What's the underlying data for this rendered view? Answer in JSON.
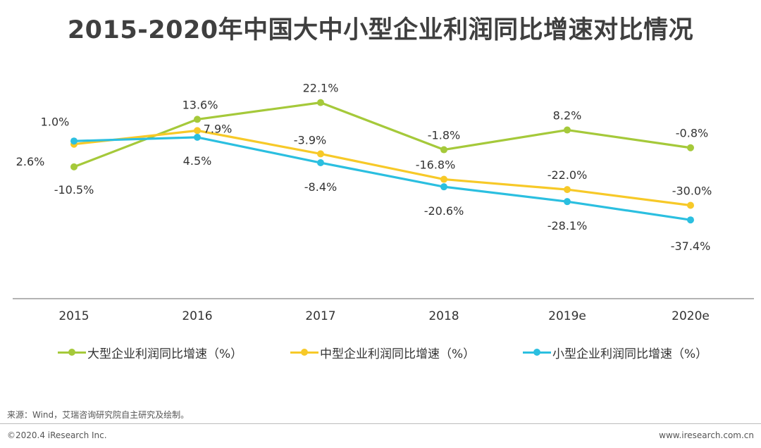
{
  "page": {
    "title": "2015-2020年中国大中小型企业利润同比增速对比情况",
    "source": "来源：Wind，艾瑞咨询研究院自主研究及绘制。",
    "copyright": "©2020.4 iResearch Inc.",
    "website": "www.iresearch.com.cn"
  },
  "chart_data": {
    "type": "line",
    "title": "2015-2020年中国大中小型企业利润同比增速对比情况",
    "categories": [
      "2015",
      "2016",
      "2017",
      "2018",
      "2019e",
      "2020e"
    ],
    "xlabel": "",
    "ylabel": "",
    "ylim": [
      -60,
      30
    ],
    "grid": false,
    "legend_position": "bottom",
    "series": [
      {
        "name": "大型企业利润同比增速（%）",
        "color": "#a5c93a",
        "values": [
          -10.5,
          13.6,
          22.1,
          -1.8,
          8.2,
          -0.8
        ],
        "labels": [
          "-10.5%",
          "13.6%",
          "22.1%",
          "-1.8%",
          "8.2%",
          "-0.8%"
        ]
      },
      {
        "name": "中型企业利润同比增速（%）",
        "color": "#f7c928",
        "values": [
          1.0,
          7.9,
          -3.9,
          -16.8,
          -22.0,
          -30.0
        ],
        "labels": [
          "1.0%",
          "7.9%",
          "-3.9%",
          "-16.8%",
          "-22.0%",
          "-30.0%"
        ]
      },
      {
        "name": "小型企业利润同比增速（%）",
        "color": "#2bbfe0",
        "values": [
          2.6,
          4.5,
          -8.4,
          -20.6,
          -28.1,
          -37.4
        ],
        "labels": [
          "2.6%",
          "4.5%",
          "-8.4%",
          "-20.6%",
          "-28.1%",
          "-37.4%"
        ]
      }
    ]
  }
}
